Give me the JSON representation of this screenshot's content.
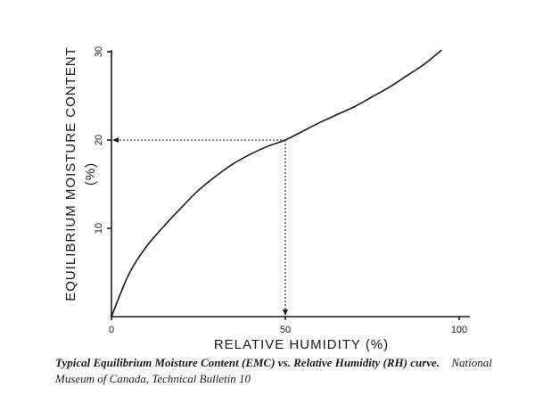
{
  "chart_data": {
    "type": "line",
    "xlabel": "RELATIVE HUMIDITY (%)",
    "ylabel": "EQUILIBRIUM MOISTURE CONTENT",
    "ylabel_unit": "(%)",
    "xlim": [
      0,
      100
    ],
    "ylim": [
      0,
      30
    ],
    "x_ticks": [
      {
        "value": 0,
        "label": "0"
      },
      {
        "value": 50,
        "label": "50"
      },
      {
        "value": 100,
        "label": "100"
      }
    ],
    "y_ticks": [
      {
        "value": 10,
        "label": "10"
      },
      {
        "value": 20,
        "label": "20"
      },
      {
        "value": 30,
        "label": "30"
      }
    ],
    "grid": false,
    "legend": "none",
    "series": [
      {
        "x": [
          0,
          5,
          10,
          15,
          20,
          25,
          30,
          35,
          40,
          45,
          50,
          55,
          60,
          65,
          70,
          75,
          80,
          85,
          90,
          95
        ],
        "y": [
          0,
          4.8,
          7.9,
          10.2,
          12.3,
          14.3,
          15.9,
          17.3,
          18.4,
          19.3,
          20.0,
          21.0,
          22.0,
          22.9,
          23.8,
          24.9,
          26.0,
          27.3,
          28.6,
          30.2
        ]
      }
    ],
    "guide_point": {
      "x": 50,
      "y": 20
    }
  },
  "caption": {
    "title": "Typical Equilibrium Moisture Content (EMC) vs. Relative Humidity (RH) curve.",
    "source": "National Museum of Canada, Technical Bulletin 10"
  }
}
